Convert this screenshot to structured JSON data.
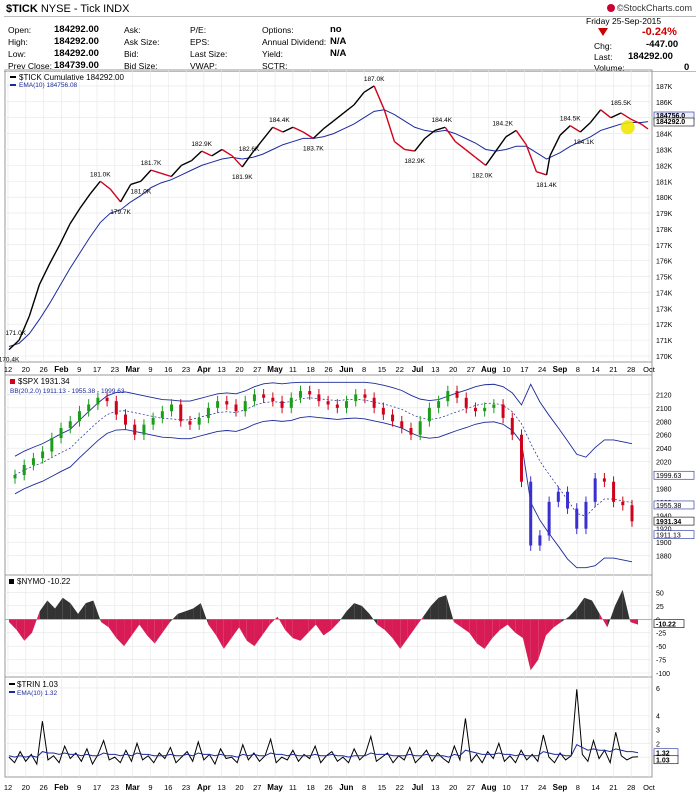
{
  "header": {
    "symbol": "$TICK",
    "exchange_name": "NYSE - Tick INDX",
    "brand": "©StockCharts.com"
  },
  "quote": {
    "left": [
      {
        "label": "Open:",
        "value": "184292.00"
      },
      {
        "label": "High:",
        "value": "184292.00"
      },
      {
        "label": "Low:",
        "value": "184292.00"
      },
      {
        "label": "Prev Close:",
        "value": "184739.00"
      }
    ],
    "mid1": [
      {
        "label": "Ask:",
        "value": ""
      },
      {
        "label": "Ask Size:",
        "value": ""
      },
      {
        "label": "Bid:",
        "value": ""
      },
      {
        "label": "Bid Size:",
        "value": ""
      }
    ],
    "mid2": [
      {
        "label": "P/E:",
        "value": ""
      },
      {
        "label": "EPS:",
        "value": ""
      },
      {
        "label": "Last Size:",
        "value": ""
      },
      {
        "label": "VWAP:",
        "value": ""
      }
    ],
    "mid3": [
      {
        "label": "Options:",
        "value": "no"
      },
      {
        "label": "Annual Dividend:",
        "value": "N/A"
      },
      {
        "label": "Yield:",
        "value": "N/A"
      },
      {
        "label": "SCTR:",
        "value": ""
      }
    ],
    "right": {
      "date": "Friday  25-Sep-2015",
      "pct_change": "-0.24%",
      "chg_label": "Chg:",
      "chg_value": "-447.00",
      "last_label": "Last:",
      "last_value": "184292.00",
      "volume_label": "Volume:",
      "volume_value": "0"
    }
  },
  "colors": {
    "up": "#1a9e1a",
    "down": "#d0021b",
    "price": "#000000",
    "ema": "#1c2a9c",
    "bb": "#1c2a9c",
    "nymo_pos": "#333333",
    "nymo_neg": "#d81b55",
    "highlight": "#f2e600"
  },
  "x_axis": {
    "labels": [
      "12",
      "20",
      "26",
      "Feb",
      "9",
      "17",
      "23",
      "Mar",
      "9",
      "16",
      "23",
      "Apr",
      "13",
      "20",
      "27",
      "May",
      "11",
      "18",
      "26",
      "Jun",
      "8",
      "15",
      "22",
      "Jul",
      "13",
      "20",
      "27",
      "Aug",
      "10",
      "17",
      "24",
      "Sep",
      "8",
      "14",
      "21",
      "28",
      "Oct"
    ],
    "bold_labels": [
      "Feb",
      "Mar",
      "Apr",
      "May",
      "Jun",
      "Jul",
      "Aug",
      "Sep"
    ]
  },
  "chart_data": [
    {
      "type": "line",
      "legend_title": "$TICK Cumulative 184292.00",
      "ema_legend": "EMA(10) 184756.08",
      "yaxis": [
        "187K",
        "186K",
        "185K",
        "184K",
        "183K",
        "182K",
        "181K",
        "180K",
        "179K",
        "178K",
        "177K",
        "176K",
        "175K",
        "174K",
        "173K",
        "172K",
        "171K",
        "170K"
      ],
      "ylim": [
        170000,
        187500
      ],
      "x": [
        0,
        3,
        6,
        9,
        12,
        15,
        18,
        21,
        24,
        27,
        30,
        33,
        36,
        39,
        42,
        45,
        48,
        51,
        54,
        57,
        60,
        63,
        66,
        69,
        72,
        75,
        78,
        81,
        84,
        87,
        90,
        93,
        96,
        99,
        102,
        105,
        108,
        111,
        114,
        117,
        120,
        123,
        126,
        129,
        132,
        135,
        138,
        141,
        144,
        147,
        150,
        153,
        156,
        159,
        160,
        163,
        166,
        169,
        172,
        175,
        178,
        181,
        184,
        187,
        189
      ],
      "close": [
        170400,
        171000,
        172500,
        174500,
        175800,
        177000,
        178300,
        179300,
        180200,
        181000,
        180500,
        179700,
        180800,
        181000,
        181700,
        181500,
        181300,
        182000,
        182300,
        182900,
        182600,
        183000,
        182600,
        181900,
        182800,
        183600,
        184400,
        184100,
        184400,
        184100,
        183700,
        184300,
        184800,
        185300,
        185800,
        186600,
        187000,
        185500,
        183500,
        183000,
        182900,
        183700,
        184200,
        184400,
        183500,
        183000,
        182500,
        182000,
        182900,
        183800,
        184200,
        183300,
        181600,
        181400,
        182600,
        183900,
        184500,
        184100,
        184700,
        185500,
        185000,
        185300,
        184900,
        184600,
        184292
      ],
      "ema": [
        170600,
        170800,
        171400,
        172300,
        173300,
        174400,
        175500,
        176500,
        177500,
        178400,
        179000,
        179200,
        179700,
        180100,
        180600,
        180900,
        181100,
        181400,
        181700,
        182000,
        182200,
        182400,
        182500,
        182400,
        182500,
        182700,
        183000,
        183300,
        183500,
        183700,
        183700,
        183800,
        184000,
        184300,
        184600,
        185000,
        185400,
        185500,
        185200,
        184800,
        184400,
        184200,
        184100,
        184200,
        184000,
        183700,
        183400,
        183000,
        182900,
        183000,
        183200,
        183200,
        182800,
        182400,
        182500,
        182800,
        183200,
        183500,
        183800,
        184200,
        184400,
        184600,
        184700,
        184700,
        184756
      ],
      "annotations": [
        {
          "x": 0,
          "y": 170400,
          "text": "170.4K",
          "pos": "below"
        },
        {
          "x": 2,
          "y": 171000,
          "text": "171.0K",
          "pos": "above"
        },
        {
          "x": 33,
          "y": 179700,
          "text": "179.7K",
          "pos": "below"
        },
        {
          "x": 27,
          "y": 181000,
          "text": "181.0K",
          "pos": "above"
        },
        {
          "x": 42,
          "y": 181700,
          "text": "181.7K",
          "pos": "above"
        },
        {
          "x": 39,
          "y": 181000,
          "text": "181.0K",
          "pos": "below"
        },
        {
          "x": 57,
          "y": 182900,
          "text": "182.9K",
          "pos": "above"
        },
        {
          "x": 69,
          "y": 181900,
          "text": "181.9K",
          "pos": "below"
        },
        {
          "x": 71,
          "y": 182600,
          "text": "182.6K",
          "pos": "above"
        },
        {
          "x": 80,
          "y": 184400,
          "text": "184.4K",
          "pos": "above"
        },
        {
          "x": 90,
          "y": 183700,
          "text": "183.7K",
          "pos": "below"
        },
        {
          "x": 108,
          "y": 187000,
          "text": "187.0K",
          "pos": "above"
        },
        {
          "x": 120,
          "y": 182900,
          "text": "182.9K",
          "pos": "below"
        },
        {
          "x": 128,
          "y": 184400,
          "text": "184.4K",
          "pos": "above"
        },
        {
          "x": 140,
          "y": 182000,
          "text": "182.0K",
          "pos": "below"
        },
        {
          "x": 146,
          "y": 184200,
          "text": "184.2K",
          "pos": "above"
        },
        {
          "x": 159,
          "y": 181400,
          "text": "181.4K",
          "pos": "below"
        },
        {
          "x": 166,
          "y": 184500,
          "text": "184.5K",
          "pos": "above"
        },
        {
          "x": 170,
          "y": 184100,
          "text": "184.1K",
          "pos": "below"
        },
        {
          "x": 181,
          "y": 185500,
          "text": "185.5K",
          "pos": "above"
        }
      ],
      "last_tags": [
        "184756.0",
        "184292.0"
      ]
    },
    {
      "type": "candlestick",
      "legend_title": "$SPX 1931.34",
      "bb_legend": "BB(20,2.0) 1911.13 - 1955.38 - 1999.63",
      "yaxis": [
        "2120",
        "2100",
        "2080",
        "2060",
        "2040",
        "2020",
        "1980",
        "1960",
        "1940",
        "1920",
        "1900",
        "1880"
      ],
      "ylim": [
        1860,
        2140
      ],
      "close_approx": [
        2000,
        2015,
        2025,
        2035,
        2055,
        2070,
        2080,
        2095,
        2105,
        2115,
        2110,
        2090,
        2075,
        2060,
        2075,
        2085,
        2095,
        2105,
        2080,
        2075,
        2085,
        2100,
        2110,
        2105,
        2095,
        2110,
        2120,
        2115,
        2110,
        2100,
        2115,
        2125,
        2120,
        2110,
        2105,
        2100,
        2110,
        2120,
        2115,
        2100,
        2090,
        2080,
        2070,
        2060,
        2080,
        2100,
        2110,
        2125,
        2115,
        2100,
        2095,
        2100,
        2105,
        2085,
        2060,
        1990,
        1895,
        1910,
        1960,
        1975,
        1950,
        1920,
        1960,
        1995,
        1990,
        1960,
        1955,
        1931
      ],
      "last_tags": [
        "1999.63",
        "1955.38",
        "1931.34",
        "1911.13"
      ]
    },
    {
      "type": "area",
      "legend_title": "$NYMO -10.22",
      "yaxis": [
        "50",
        "25",
        "0",
        "-25",
        "-50",
        "-75",
        "-100"
      ],
      "ylim": [
        -100,
        75
      ],
      "values": [
        -5,
        -20,
        -40,
        -25,
        15,
        35,
        20,
        40,
        30,
        10,
        30,
        35,
        -5,
        -15,
        -35,
        -50,
        -30,
        -10,
        -30,
        -45,
        -25,
        -5,
        10,
        15,
        20,
        30,
        -10,
        -30,
        -55,
        -35,
        -15,
        -40,
        -50,
        -30,
        -10,
        5,
        -20,
        -35,
        -40,
        -25,
        -10,
        -30,
        -20,
        -5,
        15,
        30,
        25,
        10,
        -10,
        -20,
        -35,
        -55,
        -35,
        -15,
        5,
        25,
        40,
        45,
        -5,
        -15,
        -25,
        -45,
        -55,
        -35,
        -20,
        -10,
        -25,
        -35,
        -95,
        -75,
        -30,
        -15,
        -5,
        5,
        20,
        40,
        35,
        10,
        -15,
        25,
        55,
        -5,
        -10
      ],
      "last_tag": "-10.22"
    },
    {
      "type": "line",
      "legend_title": "$TRIN 1.03",
      "ema_legend": "EMA(10) 1.32",
      "yaxis": [
        "6",
        "4",
        "3",
        "2",
        "1"
      ],
      "ylim": [
        0,
        6.5
      ],
      "values": [
        1.0,
        0.6,
        1.4,
        0.7,
        1.2,
        0.5,
        3.6,
        0.8,
        1.1,
        0.6,
        1.8,
        0.9,
        1.3,
        0.7,
        1.6,
        0.5,
        1.2,
        2.2,
        0.8,
        1.0,
        0.6,
        1.5,
        0.7,
        2.0,
        0.8,
        1.1,
        0.6,
        1.3,
        0.9,
        1.7,
        0.6,
        1.0,
        1.4,
        0.7,
        2.1,
        0.8,
        1.2,
        0.5,
        1.6,
        0.9,
        1.0,
        0.6,
        1.9,
        0.8,
        1.3,
        0.7,
        1.1,
        2.3,
        0.6,
        1.0,
        0.8,
        1.5,
        0.7,
        1.2,
        0.9,
        1.8,
        0.6,
        1.1,
        1.4,
        0.7,
        1.0,
        0.6,
        1.6,
        0.8,
        1.2,
        2.5,
        0.7,
        1.0,
        1.3,
        0.6,
        1.1,
        0.8,
        1.7,
        0.6,
        1.0,
        1.5,
        0.7,
        1.3,
        0.9,
        0.6,
        1.8,
        0.8,
        3.8,
        0.7,
        1.2,
        0.6,
        1.4,
        0.9,
        2.0,
        0.7,
        1.1,
        0.6,
        1.5,
        0.8,
        1.2,
        0.7,
        2.6,
        1.0,
        0.6,
        1.3,
        0.8,
        1.1,
        5.9,
        1.2,
        0.7,
        2.2,
        0.9,
        1.5,
        0.6,
        2.8,
        1.1,
        0.8,
        1.0,
        1.03
      ],
      "ema": [
        1.1,
        1.0,
        1.1,
        1.0,
        1.1,
        1.0,
        1.4,
        1.3,
        1.3,
        1.2,
        1.3,
        1.2,
        1.2,
        1.1,
        1.2,
        1.1,
        1.1,
        1.3,
        1.2,
        1.2,
        1.1,
        1.2,
        1.1,
        1.3,
        1.2,
        1.2,
        1.1,
        1.1,
        1.1,
        1.2,
        1.1,
        1.1,
        1.2,
        1.1,
        1.3,
        1.2,
        1.2,
        1.1,
        1.2,
        1.1,
        1.1,
        1.0,
        1.2,
        1.1,
        1.2,
        1.1,
        1.1,
        1.3,
        1.2,
        1.2,
        1.1,
        1.2,
        1.1,
        1.1,
        1.1,
        1.2,
        1.1,
        1.1,
        1.2,
        1.1,
        1.1,
        1.0,
        1.1,
        1.1,
        1.1,
        1.3,
        1.2,
        1.2,
        1.2,
        1.1,
        1.1,
        1.1,
        1.2,
        1.1,
        1.1,
        1.2,
        1.1,
        1.1,
        1.1,
        1.0,
        1.2,
        1.1,
        1.5,
        1.4,
        1.3,
        1.2,
        1.2,
        1.2,
        1.3,
        1.2,
        1.2,
        1.1,
        1.2,
        1.1,
        1.1,
        1.1,
        1.4,
        1.3,
        1.2,
        1.2,
        1.1,
        1.1,
        1.9,
        1.7,
        1.5,
        1.6,
        1.5,
        1.5,
        1.4,
        1.6,
        1.5,
        1.4,
        1.4,
        1.32
      ],
      "last_tags": [
        "1.32",
        "1.03"
      ]
    }
  ]
}
